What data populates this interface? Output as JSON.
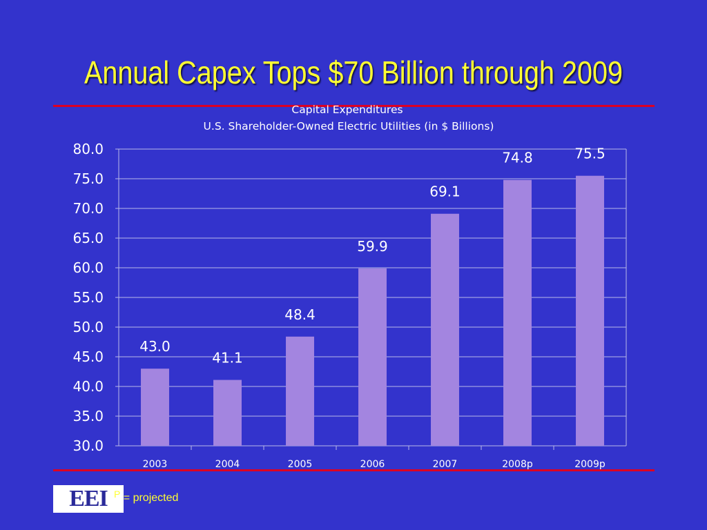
{
  "slide": {
    "title": "Annual Capex Tops $70 Billion through 2009",
    "footnote_symbol": "P",
    "footnote_text": " = projected",
    "logo_text": "EEI"
  },
  "colors": {
    "background": "#3333cc",
    "title": "#ffff33",
    "rule": "#dd0022",
    "bar": "#a385e0",
    "gridline": "#b8b8e8",
    "text": "#ffffff"
  },
  "chart_data": {
    "type": "bar",
    "title": "Capital Expenditures",
    "subtitle": "U.S. Shareholder-Owned Electric Utilities (in $ Billions)",
    "categories": [
      "2003",
      "2004",
      "2005",
      "2006",
      "2007",
      "2008p",
      "2009p"
    ],
    "values": [
      43.0,
      41.1,
      48.4,
      59.9,
      69.1,
      74.8,
      75.5
    ],
    "value_labels": [
      "43.0",
      "41.1",
      "48.4",
      "59.9",
      "69.1",
      "74.8",
      "75.5"
    ],
    "ylim": [
      30,
      80
    ],
    "yticks": [
      "30.0",
      "35.0",
      "40.0",
      "45.0",
      "50.0",
      "55.0",
      "60.0",
      "65.0",
      "70.0",
      "75.0",
      "80.0"
    ],
    "xlabel": "",
    "ylabel": "",
    "grid": true,
    "legend": "none"
  }
}
